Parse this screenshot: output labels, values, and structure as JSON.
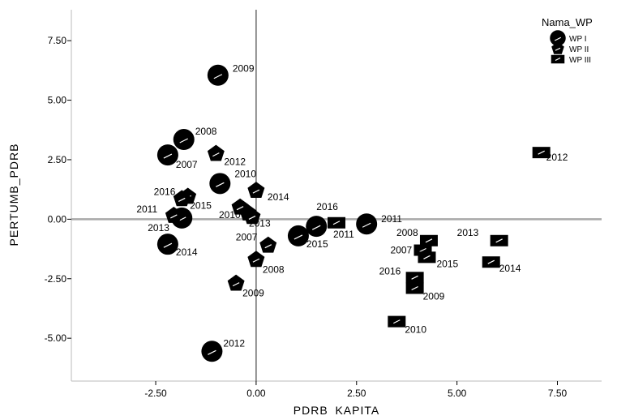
{
  "chart_data": {
    "type": "scatter",
    "title": "",
    "xlabel": "PDRB_KAPITA",
    "ylabel": "PERTUMB_PDRB",
    "xlim": [
      -4.6,
      8.6
    ],
    "ylim": [
      -6.8,
      8.8
    ],
    "x_ticks": [
      -2.5,
      0,
      2.5,
      5,
      7.5
    ],
    "x_tick_labels": [
      "-2.50",
      "0.00",
      "2.50",
      "5.00",
      "7.50"
    ],
    "y_ticks": [
      -5,
      -2.5,
      0,
      2.5,
      5,
      7.5
    ],
    "y_tick_labels": [
      "-5.00",
      "-2.50",
      "0.00",
      "2.50",
      "5.00",
      "7.50"
    ],
    "reference_lines": {
      "x": 0,
      "y": 0
    },
    "grid": false,
    "legend": {
      "title": "Nama_WP",
      "position": "top-right"
    },
    "series": [
      {
        "name": "WP I",
        "marker": "circle",
        "color": "#000000",
        "points": [
          {
            "x": -0.95,
            "y": 6.05,
            "label": "2009"
          },
          {
            "x": -1.8,
            "y": 3.35,
            "label": "2008"
          },
          {
            "x": -2.2,
            "y": 2.7,
            "label": "2007"
          },
          {
            "x": -0.9,
            "y": 1.5,
            "label": "2010"
          },
          {
            "x": -1.85,
            "y": 0.05,
            "label": "2013"
          },
          {
            "x": -2.2,
            "y": -1.05,
            "label": "2014"
          },
          {
            "x": -1.1,
            "y": -5.55,
            "label": "2012"
          },
          {
            "x": 1.05,
            "y": -0.7,
            "label": "2015"
          },
          {
            "x": 1.5,
            "y": -0.3,
            "label": "2016"
          },
          {
            "x": 2.75,
            "y": -0.2,
            "label": "2011"
          }
        ]
      },
      {
        "name": "WP II",
        "marker": "pentagon",
        "color": "#000000",
        "points": [
          {
            "x": -1.0,
            "y": 2.75,
            "label": "2012"
          },
          {
            "x": -1.7,
            "y": 0.95,
            "label": "2016"
          },
          {
            "x": -1.85,
            "y": 0.85,
            "label": "2015"
          },
          {
            "x": -2.05,
            "y": 0.15,
            "label": "2011"
          },
          {
            "x": -0.4,
            "y": 0.5,
            "label": ""
          },
          {
            "x": -0.2,
            "y": 0.25,
            "label": "2010"
          },
          {
            "x": -0.1,
            "y": 0.1,
            "label": "2013"
          },
          {
            "x": 0.0,
            "y": 1.2,
            "label": "2014"
          },
          {
            "x": 0.3,
            "y": -1.1,
            "label": "2007"
          },
          {
            "x": 0.0,
            "y": -1.7,
            "label": "2008"
          },
          {
            "x": -0.5,
            "y": -2.7,
            "label": "2009"
          }
        ]
      },
      {
        "name": "WP III",
        "marker": "square",
        "color": "#000000",
        "points": [
          {
            "x": 2.0,
            "y": -0.15,
            "label": "2011"
          },
          {
            "x": 7.1,
            "y": 2.8,
            "label": "2012"
          },
          {
            "x": 4.3,
            "y": -0.9,
            "label": "2008"
          },
          {
            "x": 4.15,
            "y": -1.3,
            "label": "2007"
          },
          {
            "x": 4.25,
            "y": -1.6,
            "label": "2015"
          },
          {
            "x": 6.05,
            "y": -0.9,
            "label": "2013"
          },
          {
            "x": 5.85,
            "y": -1.8,
            "label": "2014"
          },
          {
            "x": 3.95,
            "y": -2.45,
            "label": "2016"
          },
          {
            "x": 3.95,
            "y": -2.9,
            "label": "2009"
          },
          {
            "x": 3.5,
            "y": -4.3,
            "label": "2010"
          }
        ]
      }
    ]
  },
  "legend_items": [
    "WP I",
    "WP II",
    "WP III"
  ]
}
